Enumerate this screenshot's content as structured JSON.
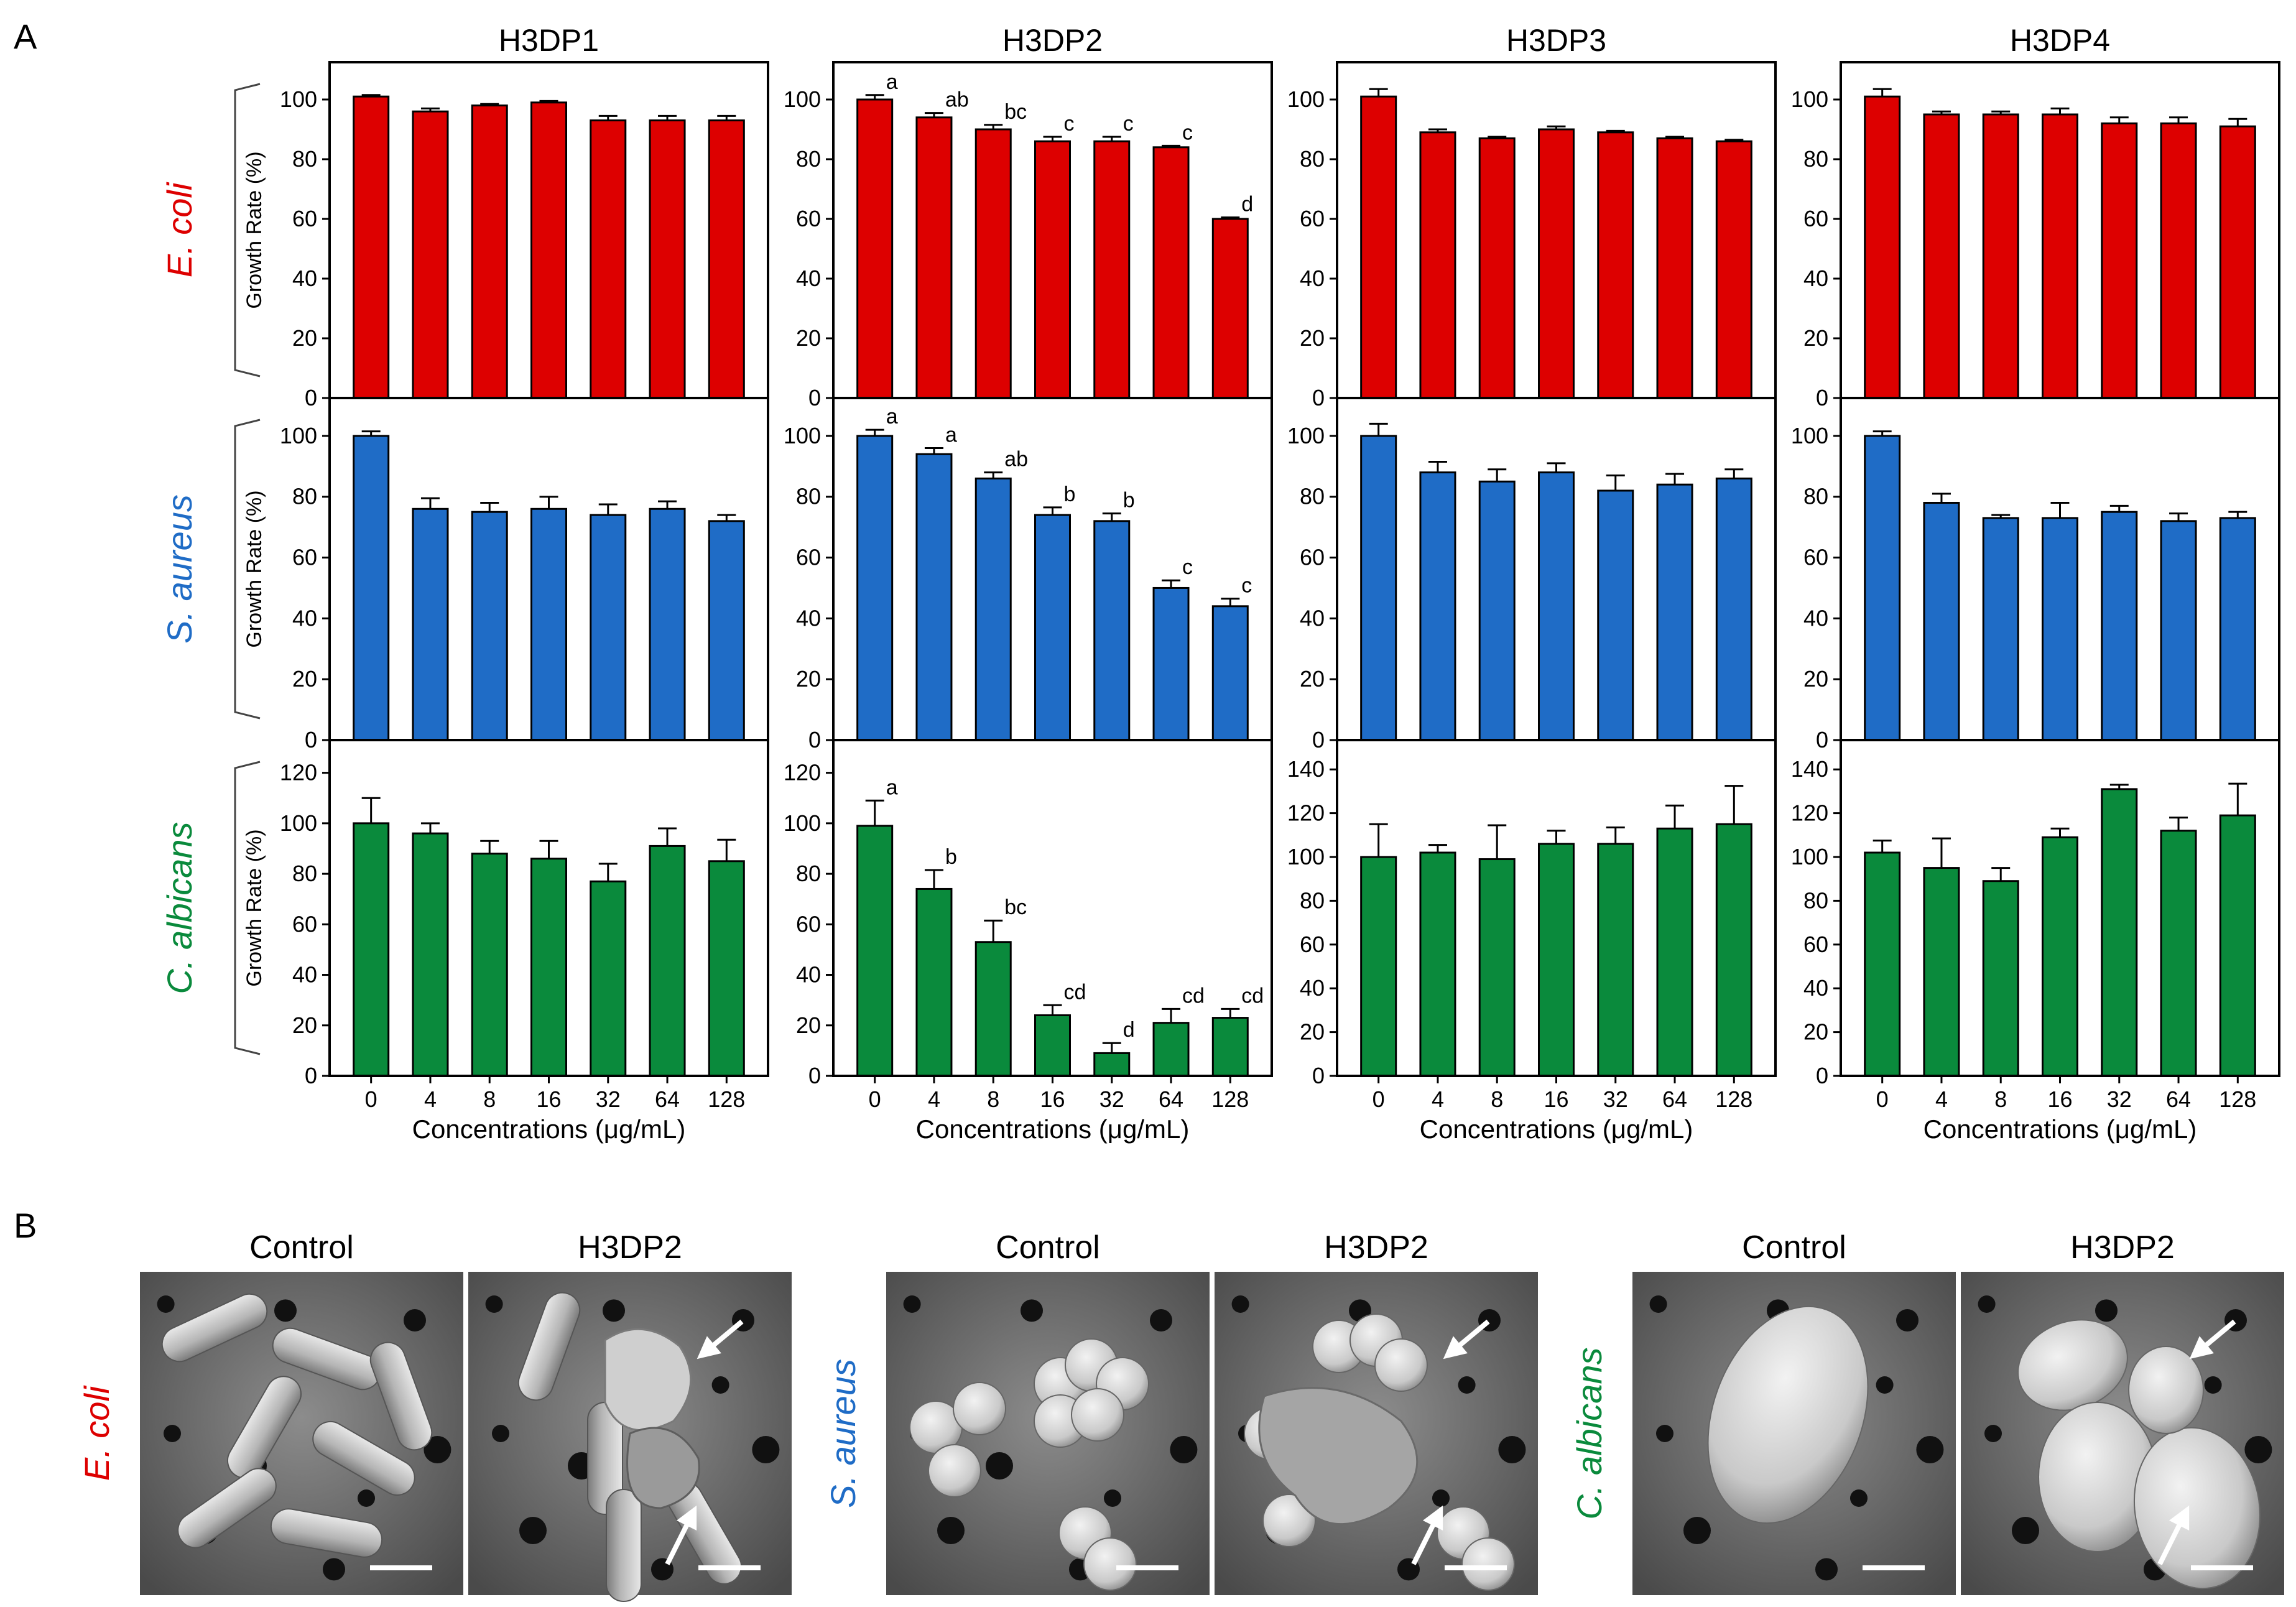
{
  "panel_labels": {
    "a": "A",
    "b": "B"
  },
  "colors": {
    "E_coli": "#dd0000",
    "S_aureus": "#1f6cc6",
    "C_albicans": "#0a8a3c"
  },
  "species": [
    {
      "key": "E_coli",
      "name": "E. coli"
    },
    {
      "key": "S_aureus",
      "name": "S. aureus"
    },
    {
      "key": "C_albicans",
      "name": "C. albicans"
    }
  ],
  "ylabel": "Growth Rate (%)",
  "xlabel": "Concentrations (μg/mL)",
  "chart_data": {
    "type": "bar",
    "title": "",
    "xlabel": "Concentrations (μg/mL)",
    "ylabel": "Growth Rate (%)",
    "categories": [
      "0",
      "4",
      "8",
      "16",
      "32",
      "64",
      "128"
    ],
    "columns": [
      "H3DP1",
      "H3DP2",
      "H3DP3",
      "H3DP4"
    ],
    "rows": [
      "E_coli",
      "S_aureus",
      "C_albicans"
    ],
    "subplots": [
      {
        "row": "E_coli",
        "col": "H3DP1",
        "ylim": [
          0,
          110
        ],
        "yticks": [
          0,
          20,
          40,
          60,
          80,
          100
        ],
        "values": [
          101,
          96,
          98,
          99,
          93,
          93,
          93
        ],
        "errors": [
          0.5,
          1,
          0.5,
          0.5,
          1.5,
          1.5,
          1.5
        ],
        "letters": []
      },
      {
        "row": "E_coli",
        "col": "H3DP2",
        "ylim": [
          0,
          110
        ],
        "yticks": [
          0,
          20,
          40,
          60,
          80,
          100
        ],
        "values": [
          100,
          94,
          90,
          86,
          86,
          84,
          60
        ],
        "errors": [
          1.5,
          1.5,
          1.5,
          1.5,
          1.5,
          0.5,
          0.5
        ],
        "letters": [
          "a",
          "ab",
          "bc",
          "c",
          "c",
          "c",
          "d"
        ]
      },
      {
        "row": "E_coli",
        "col": "H3DP3",
        "ylim": [
          0,
          110
        ],
        "yticks": [
          0,
          20,
          40,
          60,
          80,
          100
        ],
        "values": [
          101,
          89,
          87,
          90,
          89,
          87,
          86
        ],
        "errors": [
          2.5,
          1,
          0.5,
          1,
          0.5,
          0.5,
          0.5
        ],
        "letters": []
      },
      {
        "row": "E_coli",
        "col": "H3DP4",
        "ylim": [
          0,
          110
        ],
        "yticks": [
          0,
          20,
          40,
          60,
          80,
          100
        ],
        "values": [
          101,
          95,
          95,
          95,
          92,
          92,
          91
        ],
        "errors": [
          2.5,
          1,
          1,
          2,
          2,
          2,
          2.5
        ],
        "letters": []
      },
      {
        "row": "S_aureus",
        "col": "H3DP1",
        "ylim": [
          0,
          110
        ],
        "yticks": [
          0,
          20,
          40,
          60,
          80,
          100
        ],
        "values": [
          100,
          76,
          75,
          76,
          74,
          76,
          72
        ],
        "errors": [
          1.5,
          3.5,
          3,
          4,
          3.5,
          2.5,
          2
        ],
        "letters": []
      },
      {
        "row": "S_aureus",
        "col": "H3DP2",
        "ylim": [
          0,
          110
        ],
        "yticks": [
          0,
          20,
          40,
          60,
          80,
          100
        ],
        "values": [
          100,
          94,
          86,
          74,
          72,
          50,
          44
        ],
        "errors": [
          2,
          2,
          2,
          2.5,
          2.5,
          2.5,
          2.5
        ],
        "letters": [
          "a",
          "a",
          "ab",
          "b",
          "b",
          "c",
          "c"
        ]
      },
      {
        "row": "S_aureus",
        "col": "H3DP3",
        "ylim": [
          0,
          110
        ],
        "yticks": [
          0,
          20,
          40,
          60,
          80,
          100
        ],
        "values": [
          100,
          88,
          85,
          88,
          82,
          84,
          86
        ],
        "errors": [
          4,
          3.5,
          4,
          3,
          5,
          3.5,
          3
        ],
        "letters": []
      },
      {
        "row": "S_aureus",
        "col": "H3DP4",
        "ylim": [
          0,
          110
        ],
        "yticks": [
          0,
          20,
          40,
          60,
          80,
          100
        ],
        "values": [
          100,
          78,
          73,
          73,
          75,
          72,
          73
        ],
        "errors": [
          1.5,
          3,
          1,
          5,
          2,
          2.5,
          2
        ],
        "letters": []
      },
      {
        "row": "C_albicans",
        "col": "H3DP1",
        "ylim": [
          0,
          130
        ],
        "yticks": [
          0,
          20,
          40,
          60,
          80,
          100,
          120
        ],
        "values": [
          100,
          96,
          88,
          86,
          77,
          91,
          85
        ],
        "errors": [
          10,
          4,
          5,
          7,
          7,
          7,
          8.5
        ],
        "letters": []
      },
      {
        "row": "C_albicans",
        "col": "H3DP2",
        "ylim": [
          0,
          130
        ],
        "yticks": [
          0,
          20,
          40,
          60,
          80,
          100,
          120
        ],
        "values": [
          99,
          74,
          53,
          24,
          9,
          21,
          23
        ],
        "errors": [
          10,
          7.5,
          8.5,
          4,
          4,
          5.5,
          3.5
        ],
        "letters": [
          "a",
          "b",
          "bc",
          "cd",
          "d",
          "cd",
          "cd"
        ]
      },
      {
        "row": "C_albicans",
        "col": "H3DP3",
        "ylim": [
          0,
          150
        ],
        "yticks": [
          0,
          20,
          40,
          60,
          80,
          100,
          120,
          140
        ],
        "values": [
          100,
          102,
          99,
          106,
          106,
          113,
          115
        ],
        "errors": [
          15,
          3.5,
          15.5,
          6,
          7.5,
          10.5,
          17.5
        ],
        "letters": []
      },
      {
        "row": "C_albicans",
        "col": "H3DP4",
        "ylim": [
          0,
          150
        ],
        "yticks": [
          0,
          20,
          40,
          60,
          80,
          100,
          120,
          140
        ],
        "values": [
          102,
          95,
          89,
          109,
          131,
          112,
          119
        ],
        "errors": [
          5.5,
          13.5,
          6,
          4,
          2,
          6,
          14.5
        ],
        "letters": []
      }
    ]
  },
  "sem_panels": [
    {
      "species": "E. coli",
      "key": "E_coli",
      "left_title": "Control",
      "right_title": "H3DP2"
    },
    {
      "species": "S. aureus",
      "key": "S_aureus",
      "left_title": "Control",
      "right_title": "H3DP2"
    },
    {
      "species": "C. albicans",
      "key": "C_albicans",
      "left_title": "Control",
      "right_title": "H3DP2"
    }
  ]
}
